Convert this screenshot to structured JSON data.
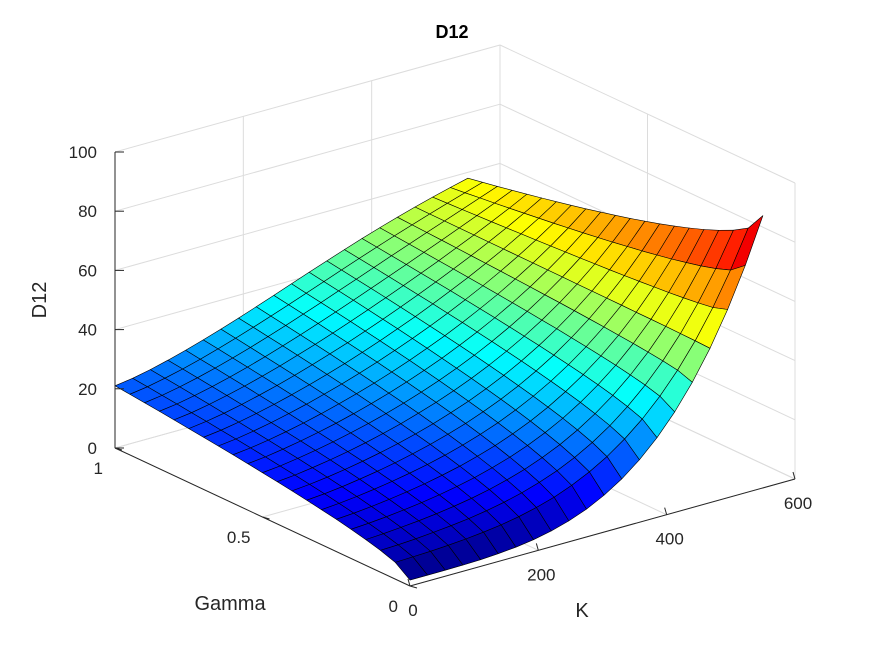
{
  "chart_data": {
    "type": "surface",
    "title": "D12",
    "xlabel": "K",
    "ylabel": "Gamma",
    "zlabel": "D12",
    "xlim": [
      0,
      600
    ],
    "ylim": [
      0,
      1
    ],
    "zlim": [
      0,
      100
    ],
    "xticks": [
      "0",
      "200",
      "400",
      "600"
    ],
    "yticks": [
      "0",
      "0.5",
      "1"
    ],
    "zticks": [
      "0",
      "20",
      "40",
      "60",
      "80",
      "100"
    ],
    "colormap": "jet",
    "grid": true,
    "k_range": [
      0,
      550
    ],
    "gamma_range": [
      0,
      1
    ],
    "grid_size": [
      20,
      20
    ],
    "corner_values": {
      "k0_gamma0": 2,
      "k0_gamma1": 21,
      "k550_gamma0": 92,
      "k550_gamma1": 58
    }
  }
}
